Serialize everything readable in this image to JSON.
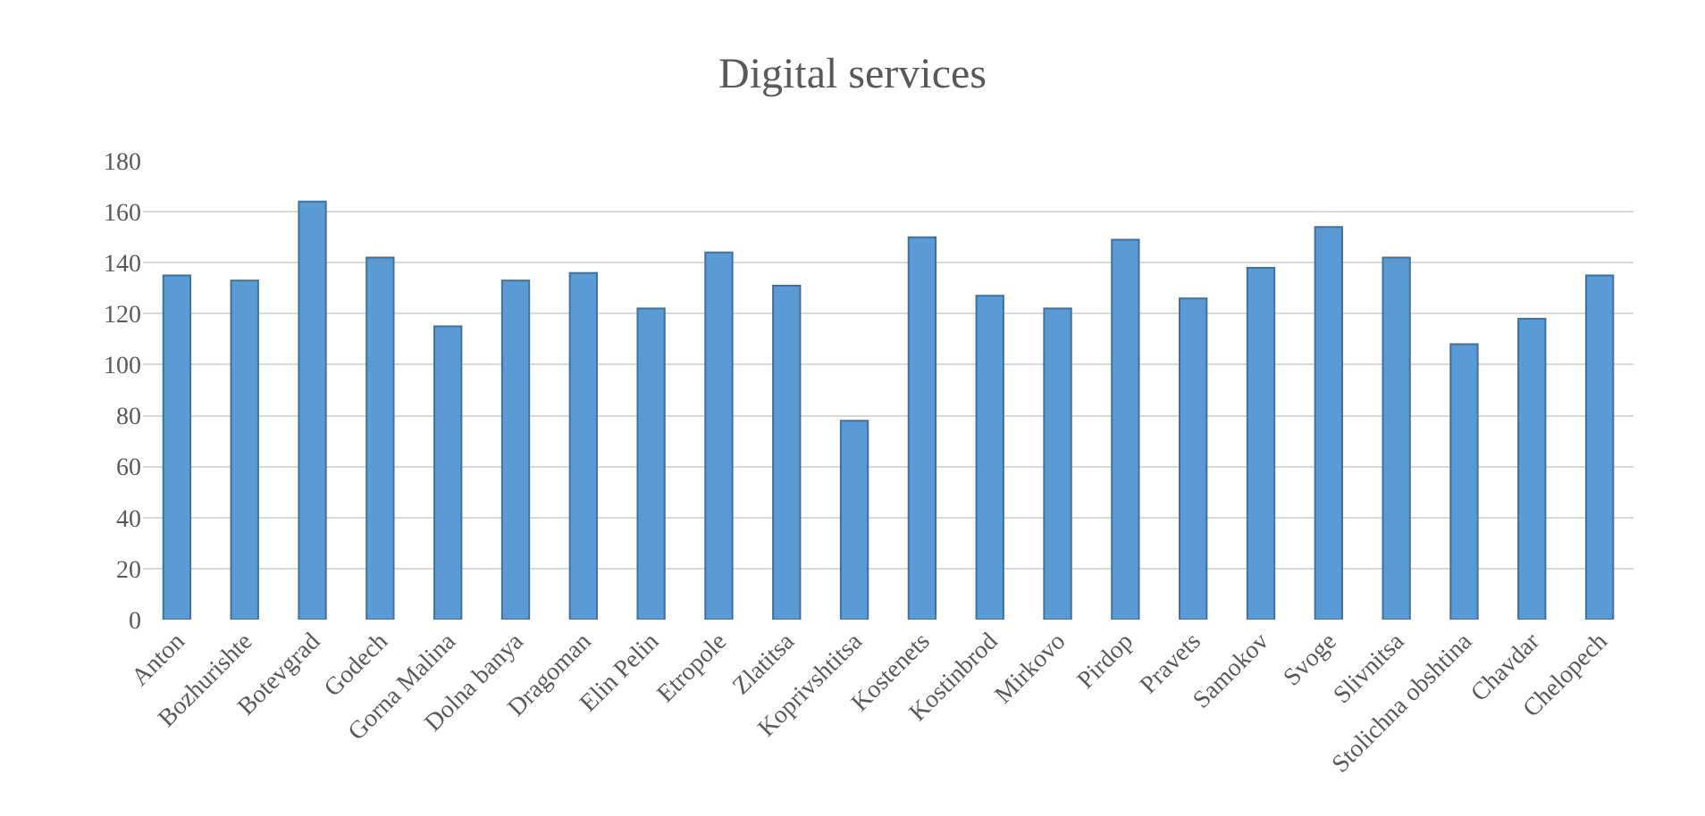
{
  "chart_data": {
    "type": "bar",
    "title": "Digital services",
    "categories": [
      "Anton",
      "Bozhurishte",
      "Botevgrad",
      "Godech",
      "Gorna Malina",
      "Dolna banya",
      "Dragoman",
      "Elin Pelin",
      "Etropole",
      "Zlatitsa",
      "Koprivshtitsa",
      "Kostenets",
      "Kostinbrod",
      "Mirkovo",
      "Pirdop",
      "Pravets",
      "Samokov",
      "Svoge",
      "Slivnitsa",
      "Stolichna obshtina",
      "Chavdar",
      "Chelopech"
    ],
    "values": [
      135,
      133,
      164,
      142,
      115,
      133,
      136,
      122,
      144,
      131,
      78,
      150,
      127,
      122,
      149,
      126,
      138,
      154,
      142,
      108,
      118,
      135
    ],
    "color": "#5b9bd5",
    "ylim": [
      0,
      180
    ],
    "yticks": [
      0,
      20,
      40,
      60,
      80,
      100,
      120,
      140,
      160,
      180
    ],
    "grid": "y"
  }
}
